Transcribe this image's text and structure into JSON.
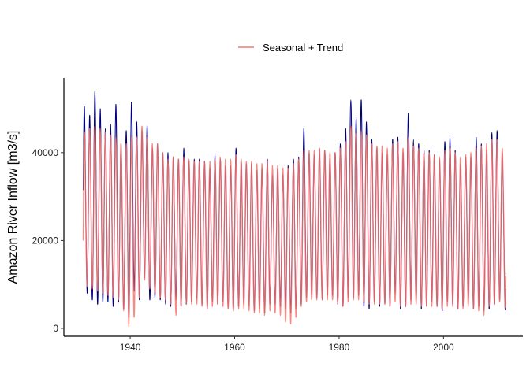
{
  "chart_data": {
    "type": "line",
    "title": "",
    "xlabel": "",
    "ylabel": "Amazon River Inflow [m3/s]",
    "xlim": [
      1927.3,
      2015.2
    ],
    "ylim": [
      -1800,
      57000
    ],
    "x_ticks": [
      1940,
      1960,
      1980,
      2000
    ],
    "x_tick_labels": [
      "1940",
      "1960",
      "1980",
      "2000"
    ],
    "y_ticks": [
      0,
      20000,
      40000
    ],
    "y_tick_labels": [
      "0",
      "20000",
      "40000"
    ],
    "grid": false,
    "legend": {
      "position": "top-center",
      "entries": [
        "Seasonal + Trend"
      ]
    },
    "colors": {
      "observed": "#00007f",
      "seasonal_trend": "#f8766d"
    },
    "observed": {
      "years": [
        1931,
        1932,
        1933,
        1934,
        1935,
        1936,
        1937,
        1938,
        1939,
        1940,
        1941,
        1942,
        1943,
        1944,
        1945,
        1946,
        1947,
        1948,
        1949,
        1950,
        1951,
        1952,
        1953,
        1954,
        1955,
        1956,
        1957,
        1958,
        1959,
        1960,
        1961,
        1962,
        1963,
        1964,
        1965,
        1966,
        1967,
        1968,
        1969,
        1970,
        1971,
        1972,
        1973,
        1974,
        1975,
        1976,
        1977,
        1978,
        1979,
        1980,
        1981,
        1982,
        1983,
        1984,
        1985,
        1986,
        1987,
        1988,
        1989,
        1990,
        1991,
        1992,
        1993,
        1994,
        1995,
        1996,
        1997,
        1998,
        1999,
        2000,
        2001,
        2002,
        2003,
        2004,
        2005,
        2006,
        2007,
        2008,
        2009,
        2010,
        2011
      ],
      "peaks": [
        50000,
        48500,
        54000,
        50000,
        45500,
        46500,
        51000,
        42000,
        45000,
        51500,
        47000,
        45000,
        46000,
        41000,
        42000,
        40000,
        40000,
        39000,
        38500,
        41000,
        38000,
        38500,
        38500,
        38000,
        36500,
        39500,
        38500,
        37000,
        37000,
        41000,
        38000,
        37500,
        37500,
        36000,
        36500,
        38500,
        35000,
        36500,
        35000,
        37000,
        38500,
        39000,
        45500,
        40000,
        39500,
        41000,
        40500,
        39000,
        40000,
        42000,
        45500,
        52000,
        48000,
        52000,
        47000,
        43000,
        41000,
        40000,
        39500,
        43000,
        43500,
        40000,
        49000,
        43000,
        42000,
        40500,
        40500,
        39500,
        38500,
        42500,
        43500,
        40500,
        37500,
        39000,
        39000,
        43500,
        42000,
        40500,
        44500,
        45000,
        40000
      ],
      "troughs": [
        8000,
        6500,
        5500,
        6000,
        6000,
        5000,
        6000,
        4500,
        2500,
        8500,
        6500,
        11500,
        6500,
        7000,
        6500,
        5500,
        5000,
        6500,
        5000,
        5500,
        6000,
        6500,
        5500,
        4500,
        6000,
        5500,
        6000,
        4500,
        4000,
        5000,
        5500,
        5000,
        4000,
        4500,
        3500,
        5500,
        5500,
        5000,
        4500,
        3500,
        4500,
        5500,
        7000,
        7500,
        7000,
        6500,
        7500,
        7500,
        5500,
        5000,
        7000,
        7000,
        7500,
        5000,
        4500,
        6000,
        5000,
        5500,
        5000,
        8000,
        4500,
        5000,
        6500,
        6500,
        4500,
        5000,
        6000,
        5000,
        4000,
        6000,
        5500,
        4500,
        5000,
        6500,
        4500,
        5000,
        4000,
        4500,
        5500,
        6500,
        6000
      ]
    },
    "seasonal_trend": {
      "years": [
        1931,
        1932,
        1933,
        1934,
        1935,
        1936,
        1937,
        1938,
        1939,
        1940,
        1941,
        1942,
        1943,
        1944,
        1945,
        1946,
        1947,
        1948,
        1949,
        1950,
        1951,
        1952,
        1953,
        1954,
        1955,
        1956,
        1957,
        1958,
        1959,
        1960,
        1961,
        1962,
        1963,
        1964,
        1965,
        1966,
        1967,
        1968,
        1969,
        1970,
        1971,
        1972,
        1973,
        1974,
        1975,
        1976,
        1977,
        1978,
        1979,
        1980,
        1981,
        1982,
        1983,
        1984,
        1985,
        1986,
        1987,
        1988,
        1989,
        1990,
        1991,
        1992,
        1993,
        1994,
        1995,
        1996,
        1997,
        1998,
        1999,
        2000,
        2001,
        2002,
        2003,
        2004,
        2005,
        2006,
        2007,
        2008,
        2009,
        2010,
        2011
      ],
      "peaks": [
        44500,
        45500,
        46000,
        45500,
        44500,
        44000,
        43500,
        42000,
        42000,
        43500,
        43500,
        46000,
        43500,
        42000,
        42000,
        40000,
        38500,
        39000,
        38500,
        39000,
        38500,
        38000,
        38000,
        38000,
        38000,
        38500,
        39000,
        38500,
        38500,
        39500,
        38500,
        38000,
        38000,
        37500,
        37500,
        38000,
        37000,
        37000,
        36500,
        36500,
        37500,
        38500,
        40500,
        40500,
        40500,
        41000,
        40500,
        40000,
        40000,
        41000,
        42500,
        46000,
        44500,
        45000,
        44000,
        42000,
        41500,
        41500,
        41000,
        42000,
        42500,
        41000,
        43500,
        41500,
        41000,
        40000,
        40000,
        39500,
        39000,
        40500,
        41000,
        40000,
        39000,
        39500,
        40000,
        41000,
        41500,
        42000,
        43000,
        43000,
        41000
      ],
      "troughs": [
        9500,
        9000,
        8500,
        8000,
        7500,
        7000,
        6500,
        4000,
        500,
        2500,
        7000,
        11000,
        9000,
        8000,
        7000,
        6500,
        5500,
        3000,
        5000,
        5500,
        5500,
        5500,
        5000,
        4500,
        5000,
        5500,
        5000,
        4500,
        4000,
        4500,
        4500,
        4000,
        3500,
        3500,
        3000,
        4000,
        3500,
        3000,
        1500,
        1000,
        2500,
        5000,
        6000,
        6500,
        6500,
        6500,
        6500,
        6500,
        5500,
        5000,
        6000,
        6500,
        6500,
        6000,
        5500,
        5500,
        5500,
        5500,
        5000,
        6000,
        5000,
        5000,
        5500,
        5500,
        5000,
        5000,
        5000,
        5000,
        4500,
        5000,
        5000,
        4500,
        4500,
        5000,
        4500,
        4000,
        3000,
        5000,
        5500,
        6000,
        6000
      ]
    }
  }
}
